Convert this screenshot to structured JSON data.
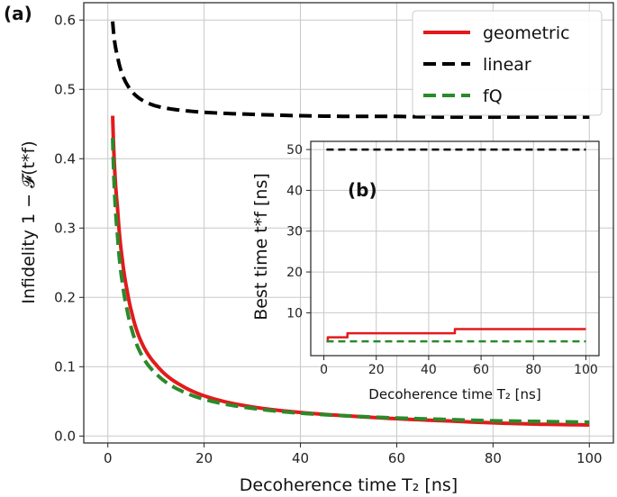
{
  "chart_data": [
    {
      "panel_label": "(a)",
      "type": "line",
      "xlabel": "Decoherence time T₂ [ns]",
      "ylabel": "Infidelity 1 − 𝓕(t*f)",
      "xlim": [
        -5,
        105
      ],
      "ylim": [
        -0.01,
        0.625
      ],
      "xticks": [
        "0",
        "20",
        "40",
        "60",
        "80",
        "100"
      ],
      "yticks": [
        "0.0",
        "0.1",
        "0.2",
        "0.3",
        "0.4",
        "0.5",
        "0.6"
      ],
      "legend_position": "top-right",
      "series": [
        {
          "name": "geometric",
          "color": "#e31a1c",
          "style": "solid",
          "x": [
            1,
            2,
            3,
            4,
            5,
            7,
            10,
            15,
            20,
            30,
            40,
            50,
            60,
            70,
            80,
            90,
            100
          ],
          "y": [
            0.462,
            0.33,
            0.255,
            0.21,
            0.177,
            0.135,
            0.103,
            0.074,
            0.058,
            0.042,
            0.034,
            0.029,
            0.025,
            0.022,
            0.019,
            0.017,
            0.016
          ]
        },
        {
          "name": "linear",
          "color": "#000000",
          "style": "dashed",
          "x": [
            1,
            2,
            3,
            4,
            5,
            7,
            10,
            15,
            20,
            30,
            40,
            50,
            60,
            70,
            80,
            90,
            100
          ],
          "y": [
            0.598,
            0.548,
            0.522,
            0.507,
            0.497,
            0.485,
            0.476,
            0.47,
            0.467,
            0.464,
            0.462,
            0.461,
            0.461,
            0.46,
            0.46,
            0.46,
            0.46
          ]
        },
        {
          "name": "fQ",
          "color": "#2a8a2a",
          "style": "dashed",
          "x": [
            1,
            2,
            3,
            4,
            5,
            7,
            10,
            15,
            20,
            30,
            40,
            50,
            60,
            70,
            80,
            90,
            100
          ],
          "y": [
            0.43,
            0.29,
            0.222,
            0.182,
            0.153,
            0.117,
            0.09,
            0.066,
            0.053,
            0.04,
            0.033,
            0.029,
            0.026,
            0.024,
            0.022,
            0.021,
            0.02
          ]
        }
      ]
    },
    {
      "panel_label": "(b)",
      "type": "line",
      "xlabel": "Decoherence time T₂ [ns]",
      "ylabel": "Best time t*f [ns]",
      "xlim": [
        -5,
        105
      ],
      "ylim": [
        -0.5,
        52
      ],
      "xticks": [
        "0",
        "20",
        "40",
        "60",
        "80",
        "100"
      ],
      "yticks": [
        "10",
        "20",
        "30",
        "40",
        "50"
      ],
      "series": [
        {
          "name": "geometric",
          "color": "#e31a1c",
          "style": "solid",
          "x": [
            1,
            1.5,
            1.5,
            9,
            9,
            50,
            50,
            100
          ],
          "y": [
            3,
            3,
            4,
            4,
            5,
            5,
            6,
            6
          ]
        },
        {
          "name": "linear",
          "color": "#000000",
          "style": "dashed",
          "x": [
            1,
            100
          ],
          "y": [
            50,
            50
          ]
        },
        {
          "name": "fQ",
          "color": "#2a8a2a",
          "style": "dashed",
          "x": [
            1,
            100
          ],
          "y": [
            3,
            3
          ]
        }
      ]
    }
  ]
}
